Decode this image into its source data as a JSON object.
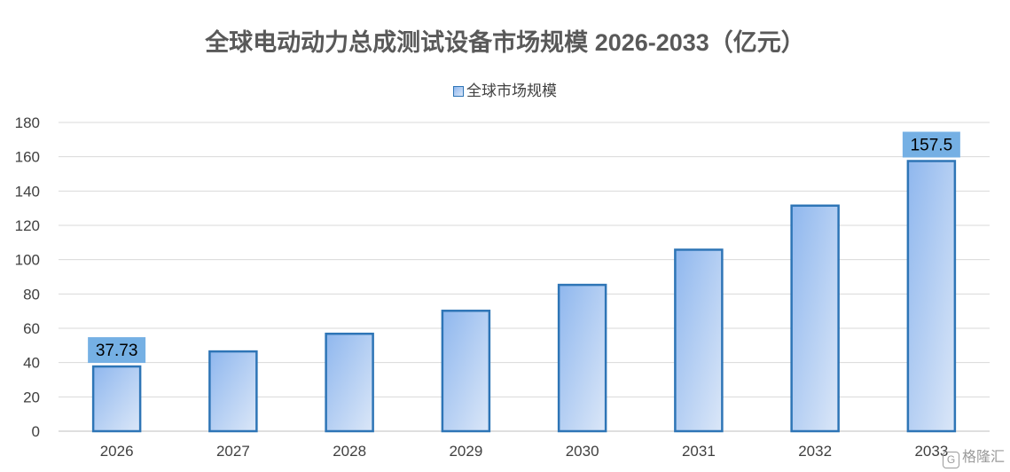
{
  "chart_data": {
    "type": "bar",
    "title": "全球电动动力总成测试设备市场规模 2026-2033（亿元）",
    "categories": [
      "2026",
      "2027",
      "2028",
      "2029",
      "2030",
      "2031",
      "2032",
      "2033"
    ],
    "series": [
      {
        "name": "全球市场规模",
        "values": [
          37.73,
          46.5,
          56.8,
          70.2,
          85.3,
          105.8,
          131.5,
          157.5
        ]
      }
    ],
    "data_labels": {
      "2026": "37.73",
      "2033": "157.5"
    },
    "ylim": [
      0,
      180
    ],
    "yticks": [
      0,
      20,
      40,
      60,
      80,
      100,
      120,
      140,
      160,
      180
    ],
    "grid": true,
    "legend_position": "top",
    "colors": {
      "bar_border": "#2e75b6",
      "bar_fill_dark": "#8fb7ee",
      "bar_fill_light": "#dbe7f8",
      "label_bg": "#75b0e4",
      "grid": "#d9d9d9"
    }
  },
  "watermark": {
    "icon": "gelonghui-logo-icon",
    "text": "格隆汇"
  }
}
